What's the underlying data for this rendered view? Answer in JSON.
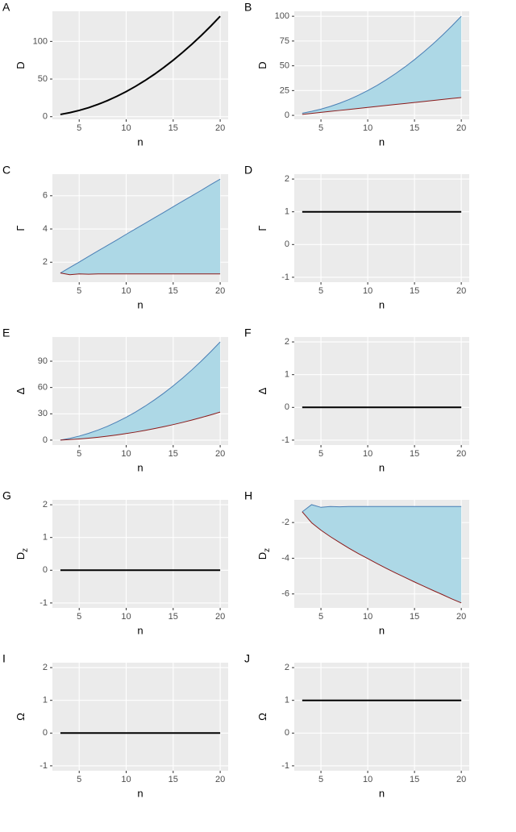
{
  "chart_data": [
    {
      "type": "line",
      "letter": "A",
      "xlabel": "n",
      "ylabel": "D",
      "color": "#000000",
      "x": [
        3,
        4,
        5,
        6,
        7,
        8,
        9,
        10,
        11,
        12,
        13,
        14,
        15,
        16,
        17,
        18,
        19,
        20
      ],
      "values": [
        3,
        5.33,
        8.33,
        12,
        16.33,
        21.33,
        27,
        33.33,
        40.33,
        48,
        56.33,
        65.33,
        75,
        85.33,
        96.33,
        108,
        120.33,
        133.33
      ],
      "xlim": [
        2.15,
        20.85
      ],
      "xticks": [
        5,
        10,
        15,
        20
      ],
      "ylim": [
        -3.5,
        140
      ],
      "yticks": [
        0,
        50,
        100
      ]
    },
    {
      "type": "ribbon",
      "letter": "B",
      "xlabel": "n",
      "ylabel": "D",
      "fill": "#add8e6",
      "upper_color": "#4a7fb5",
      "lower_color": "#8b1a1a",
      "x": [
        3,
        4,
        5,
        6,
        7,
        8,
        9,
        10,
        11,
        12,
        13,
        14,
        15,
        16,
        17,
        18,
        19,
        20
      ],
      "upper": [
        2.25,
        4,
        6.25,
        9,
        12.25,
        16,
        20.25,
        25,
        30.25,
        36,
        42.25,
        49,
        56.25,
        64,
        72.25,
        81,
        90.25,
        100
      ],
      "lower": [
        1,
        2,
        3,
        4,
        5,
        6,
        7,
        8,
        9,
        10,
        11,
        12,
        13,
        14,
        15,
        16,
        17,
        18
      ],
      "xlim": [
        2.15,
        20.85
      ],
      "xticks": [
        5,
        10,
        15,
        20
      ],
      "ylim": [
        -4,
        105
      ],
      "yticks": [
        0,
        25,
        50,
        75,
        100
      ]
    },
    {
      "type": "ribbon",
      "letter": "C",
      "xlabel": "n",
      "ylabel": "Γ",
      "fill": "#add8e6",
      "upper_color": "#4a7fb5",
      "lower_color": "#8b1a1a",
      "x": [
        3,
        4,
        5,
        6,
        7,
        8,
        9,
        10,
        11,
        12,
        13,
        14,
        15,
        16,
        17,
        18,
        19,
        20
      ],
      "upper": [
        1.35,
        1.68,
        2.01,
        2.35,
        2.68,
        3.01,
        3.34,
        3.68,
        4.01,
        4.34,
        4.67,
        5.0,
        5.34,
        5.67,
        6.0,
        6.33,
        6.67,
        7.0
      ],
      "lower": [
        1.35,
        1.25,
        1.3,
        1.28,
        1.3,
        1.3,
        1.3,
        1.3,
        1.3,
        1.3,
        1.3,
        1.3,
        1.3,
        1.3,
        1.3,
        1.3,
        1.3,
        1.3
      ],
      "xlim": [
        2.15,
        20.85
      ],
      "xticks": [
        5,
        10,
        15,
        20
      ],
      "ylim": [
        0.8,
        7.3
      ],
      "yticks": [
        2,
        4,
        6
      ]
    },
    {
      "type": "line",
      "letter": "D",
      "xlabel": "n",
      "ylabel": "Γ",
      "color": "#000000",
      "x": [
        3,
        20
      ],
      "values": [
        1,
        1
      ],
      "xlim": [
        2.15,
        20.85
      ],
      "xticks": [
        5,
        10,
        15,
        20
      ],
      "ylim": [
        -1.15,
        2.15
      ],
      "yticks": [
        -1,
        0,
        1,
        2
      ]
    },
    {
      "type": "ribbon",
      "letter": "E",
      "xlabel": "n",
      "ylabel": "Δ",
      "fill": "#add8e6",
      "upper_color": "#4a7fb5",
      "lower_color": "#8b1a1a",
      "x": [
        3,
        4,
        5,
        6,
        7,
        8,
        9,
        10,
        11,
        12,
        13,
        14,
        15,
        16,
        17,
        18,
        19,
        20
      ],
      "upper": [
        0,
        2.0,
        4.58,
        7.73,
        11.46,
        15.75,
        20.62,
        26.06,
        32.08,
        38.66,
        45.82,
        53.55,
        61.86,
        70.74,
        80.19,
        90.21,
        100.81,
        111.98
      ],
      "lower": [
        0,
        0.57,
        1.31,
        2.21,
        3.27,
        4.5,
        5.89,
        7.45,
        9.17,
        11.05,
        13.09,
        15.3,
        17.67,
        20.21,
        22.91,
        25.77,
        28.8,
        32.0
      ],
      "xlim": [
        2.15,
        20.85
      ],
      "xticks": [
        5,
        10,
        15,
        20
      ],
      "ylim": [
        -5.6,
        117.6
      ],
      "yticks": [
        0,
        30,
        60,
        90
      ]
    },
    {
      "type": "line",
      "letter": "F",
      "xlabel": "n",
      "ylabel": "Δ",
      "color": "#000000",
      "x": [
        3,
        20
      ],
      "values": [
        0,
        0
      ],
      "xlim": [
        2.15,
        20.85
      ],
      "xticks": [
        5,
        10,
        15,
        20
      ],
      "ylim": [
        -1.15,
        2.15
      ],
      "yticks": [
        -1,
        0,
        1,
        2
      ]
    },
    {
      "type": "line",
      "letter": "G",
      "xlabel": "n",
      "ylabel": "D",
      "ylabel_sub": "z",
      "color": "#000000",
      "x": [
        3,
        20
      ],
      "values": [
        0,
        0
      ],
      "xlim": [
        2.15,
        20.85
      ],
      "xticks": [
        5,
        10,
        15,
        20
      ],
      "ylim": [
        -1.15,
        2.15
      ],
      "yticks": [
        -1,
        0,
        1,
        2
      ]
    },
    {
      "type": "ribbon",
      "letter": "H",
      "xlabel": "n",
      "ylabel": "D",
      "ylabel_sub": "z",
      "fill": "#add8e6",
      "upper_color": "#4a7fb5",
      "lower_color": "#8b1a1a",
      "x": [
        3,
        4,
        5,
        6,
        7,
        8,
        9,
        10,
        11,
        12,
        13,
        14,
        15,
        16,
        17,
        18,
        19,
        20
      ],
      "upper": [
        -1.4,
        -1.0,
        -1.15,
        -1.1,
        -1.12,
        -1.1,
        -1.1,
        -1.1,
        -1.1,
        -1.1,
        -1.1,
        -1.1,
        -1.1,
        -1.1,
        -1.1,
        -1.1,
        -1.1,
        -1.1
      ],
      "lower": [
        -1.4,
        -2.01,
        -2.43,
        -2.79,
        -3.12,
        -3.44,
        -3.74,
        -4.02,
        -4.3,
        -4.57,
        -4.83,
        -5.08,
        -5.33,
        -5.57,
        -5.81,
        -6.04,
        -6.28,
        -6.5
      ],
      "xlim": [
        2.15,
        20.85
      ],
      "xticks": [
        5,
        10,
        15,
        20
      ],
      "ylim": [
        -6.78,
        -0.73
      ],
      "yticks": [
        -2,
        -4,
        -6
      ]
    },
    {
      "type": "line",
      "letter": "I",
      "xlabel": "n",
      "ylabel": "Ω",
      "color": "#000000",
      "x": [
        3,
        20
      ],
      "values": [
        0,
        0
      ],
      "xlim": [
        2.15,
        20.85
      ],
      "xticks": [
        5,
        10,
        15,
        20
      ],
      "ylim": [
        -1.15,
        2.15
      ],
      "yticks": [
        -1,
        0,
        1,
        2
      ]
    },
    {
      "type": "line",
      "letter": "J",
      "xlabel": "n",
      "ylabel": "Ω",
      "color": "#000000",
      "x": [
        3,
        20
      ],
      "values": [
        1,
        1
      ],
      "xlim": [
        2.15,
        20.85
      ],
      "xticks": [
        5,
        10,
        15,
        20
      ],
      "ylim": [
        -1.15,
        2.15
      ],
      "yticks": [
        -1,
        0,
        1,
        2
      ]
    }
  ]
}
